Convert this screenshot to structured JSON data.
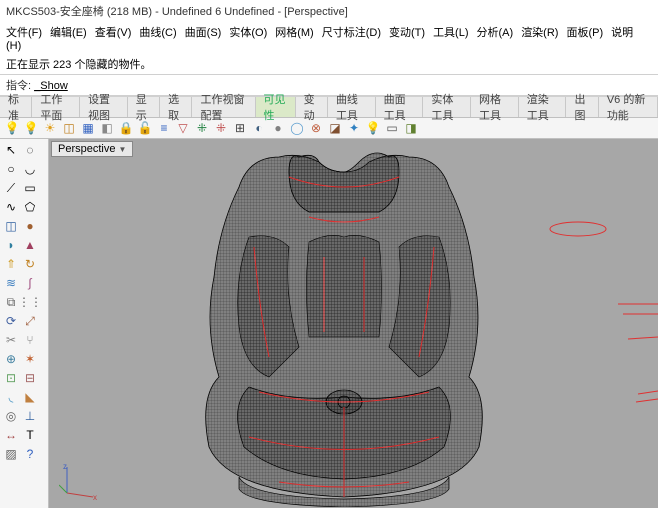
{
  "window": {
    "title": "MKCS503-安全座椅 (218 MB) - Undefined 6 Undefined - [Perspective]"
  },
  "menu": {
    "items": [
      "文件(F)",
      "编辑(E)",
      "查看(V)",
      "曲线(C)",
      "曲面(S)",
      "实体(O)",
      "网格(M)",
      "尺寸标注(D)",
      "变动(T)",
      "工具(L)",
      "分析(A)",
      "渲染(R)",
      "面板(P)",
      "说明(H)"
    ]
  },
  "cmd": {
    "line1": "正在显示 223 个隐藏的物件。",
    "label": "指令:",
    "value": "_Show"
  },
  "tabs": {
    "items": [
      "标准",
      "工作平面",
      "设置视图",
      "显示",
      "选取",
      "工作视窗配置",
      "可见性",
      "变动",
      "曲线工具",
      "曲面工具",
      "实体工具",
      "网格工具",
      "渲染工具",
      "出图",
      "V6 的新功能"
    ],
    "active_index": 6
  },
  "toolbar2": {
    "icons": [
      {
        "name": "bulb-icon",
        "glyph": "💡",
        "color": "#e8c030"
      },
      {
        "name": "bulb-off-icon",
        "glyph": "💡",
        "color": "#888"
      },
      {
        "name": "sun-icon",
        "glyph": "☀",
        "color": "#e0a020"
      },
      {
        "name": "layers-open-icon",
        "glyph": "◫",
        "color": "#c08020"
      },
      {
        "name": "layers-icon",
        "glyph": "▦",
        "color": "#3060c0"
      },
      {
        "name": "hide-icon",
        "glyph": "◧",
        "color": "#888"
      },
      {
        "name": "lock-icon",
        "glyph": "🔒",
        "color": "#808080"
      },
      {
        "name": "unlock-icon",
        "glyph": "🔓",
        "color": "#808080"
      },
      {
        "name": "layer-state-icon",
        "glyph": "≡",
        "color": "#3060c0"
      },
      {
        "name": "filter-icon",
        "glyph": "▽",
        "color": "#c05050"
      },
      {
        "name": "points-on-icon",
        "glyph": "⁜",
        "color": "#208040"
      },
      {
        "name": "points-off-icon",
        "glyph": "⁜",
        "color": "#c05050"
      },
      {
        "name": "wireframe-icon",
        "glyph": "⊞",
        "color": "#444"
      },
      {
        "name": "shade-icon",
        "glyph": "◐",
        "color": "#406080"
      },
      {
        "name": "render-icon",
        "glyph": "●",
        "color": "#808080"
      },
      {
        "name": "ghost-icon",
        "glyph": "◯",
        "color": "#60a0d0"
      },
      {
        "name": "xray-icon",
        "glyph": "⊗",
        "color": "#c06040"
      },
      {
        "name": "clip-icon",
        "glyph": "◪",
        "color": "#805030"
      },
      {
        "name": "iso-icon",
        "glyph": "✦",
        "color": "#3080c0"
      },
      {
        "name": "light-bulb-icon",
        "glyph": "💡",
        "color": "#d0c040"
      },
      {
        "name": "print-display-icon",
        "glyph": "▭",
        "color": "#555"
      },
      {
        "name": "flat-icon",
        "glyph": "◨",
        "color": "#608030"
      }
    ]
  },
  "left_tools": {
    "icons": [
      {
        "name": "pointer-icon",
        "glyph": "↖",
        "color": "#000"
      },
      {
        "name": "lasso-icon",
        "glyph": "◌",
        "color": "#000"
      },
      {
        "name": "circle-icon",
        "glyph": "○",
        "color": "#000"
      },
      {
        "name": "arc-icon",
        "glyph": "◡",
        "color": "#000"
      },
      {
        "name": "polyline-icon",
        "glyph": "⟋",
        "color": "#000"
      },
      {
        "name": "rect-icon",
        "glyph": "▭",
        "color": "#000"
      },
      {
        "name": "curve-icon",
        "glyph": "∿",
        "color": "#000"
      },
      {
        "name": "polygon-icon",
        "glyph": "⬠",
        "color": "#000"
      },
      {
        "name": "box-icon",
        "glyph": "◫",
        "color": "#3060a0"
      },
      {
        "name": "sphere-icon",
        "glyph": "●",
        "color": "#a06030"
      },
      {
        "name": "cylinder-icon",
        "glyph": "◗",
        "color": "#3080a0"
      },
      {
        "name": "cone-icon",
        "glyph": "▲",
        "color": "#a04060"
      },
      {
        "name": "extrude-icon",
        "glyph": "⇑",
        "color": "#d0a030"
      },
      {
        "name": "revolve-icon",
        "glyph": "↻",
        "color": "#c08020"
      },
      {
        "name": "loft-icon",
        "glyph": "≋",
        "color": "#4080c0"
      },
      {
        "name": "sweep-icon",
        "glyph": "∫",
        "color": "#a05080"
      },
      {
        "name": "mirror-icon",
        "glyph": "⧉",
        "color": "#606060"
      },
      {
        "name": "array-icon",
        "glyph": "⋮⋮",
        "color": "#606060"
      },
      {
        "name": "rotate-icon",
        "glyph": "⟳",
        "color": "#4060a0"
      },
      {
        "name": "scale-icon",
        "glyph": "⤢",
        "color": "#a06040"
      },
      {
        "name": "trim-icon",
        "glyph": "✂",
        "color": "#808080"
      },
      {
        "name": "split-icon",
        "glyph": "⑂",
        "color": "#808080"
      },
      {
        "name": "join-icon",
        "glyph": "⊕",
        "color": "#4080a0"
      },
      {
        "name": "explode-icon",
        "glyph": "✶",
        "color": "#c06030"
      },
      {
        "name": "group-icon",
        "glyph": "⊡",
        "color": "#60a060"
      },
      {
        "name": "ungroup-icon",
        "glyph": "⊟",
        "color": "#a06060"
      },
      {
        "name": "fillet-icon",
        "glyph": "◟",
        "color": "#4090c0"
      },
      {
        "name": "chamfer-icon",
        "glyph": "◣",
        "color": "#c08040"
      },
      {
        "name": "offset-icon",
        "glyph": "◎",
        "color": "#606060"
      },
      {
        "name": "project-icon",
        "glyph": "⊥",
        "color": "#3060a0"
      },
      {
        "name": "dim-icon",
        "glyph": "↔",
        "color": "#a04040"
      },
      {
        "name": "text-icon",
        "glyph": "T",
        "color": "#000"
      },
      {
        "name": "hatch-icon",
        "glyph": "▨",
        "color": "#606060"
      },
      {
        "name": "analyze-icon",
        "glyph": "?",
        "color": "#3060c0"
      }
    ]
  },
  "viewport": {
    "tab_label": "Perspective",
    "axis": {
      "x": "x",
      "y": "y",
      "z": "z",
      "x_color": "#c04040",
      "y_color": "#40a040",
      "z_color": "#4060c0"
    },
    "background": "#a7a7a7",
    "wire_color": "#1a1a1a",
    "iso_color": "#e03030"
  }
}
